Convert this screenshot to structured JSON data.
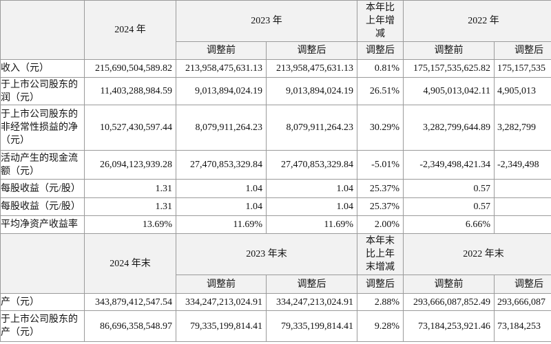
{
  "sections": [
    {
      "header": {
        "period_a": "2024 年",
        "period_b": "2023 年",
        "change": "本年比\n上年增\n减",
        "period_c": "2022 年",
        "sub": [
          "调整前",
          "调整后",
          "调整后",
          "调整前",
          "调整后"
        ]
      },
      "rows": [
        {
          "label": "收入（元）",
          "cells": [
            "215,690,504,589.82",
            "213,958,475,631.13",
            "213,958,475,631.13",
            "0.81%",
            "175,157,535,625.82",
            "175,157,535"
          ]
        },
        {
          "label": "于上市公司股东的\n润（元）",
          "cells": [
            "11,403,288,984.59",
            "9,013,894,024.19",
            "9,013,894,024.19",
            "26.51%",
            "4,905,013,042.11",
            "4,905,013"
          ]
        },
        {
          "label": "于上市公司股东的\n非经常性损益的净\n（元）",
          "cells": [
            "10,527,430,597.44",
            "8,079,911,264.23",
            "8,079,911,264.23",
            "30.29%",
            "3,282,799,644.89",
            "3,282,799"
          ]
        },
        {
          "label": "活动产生的现金流\n额（元）",
          "cells": [
            "26,094,123,939.28",
            "27,470,853,329.84",
            "27,470,853,329.84",
            "-5.01%",
            "-2,349,498,421.34",
            "-2,349,498"
          ]
        },
        {
          "label": "每股收益（元/股）",
          "cells": [
            "1.31",
            "1.04",
            "1.04",
            "25.37%",
            "0.57"
          ]
        },
        {
          "label": "每股收益（元/股）",
          "cells": [
            "1.31",
            "1.04",
            "1.04",
            "25.37%",
            "0.57"
          ]
        },
        {
          "label": "平均净资产收益率",
          "cells": [
            "13.69%",
            "11.69%",
            "11.69%",
            "2.00%",
            "6.66%"
          ]
        }
      ]
    },
    {
      "header": {
        "period_a": "2024 年末",
        "period_b": "2023 年末",
        "change": "本年末\n比上年\n末增减",
        "period_c": "2022 年末",
        "sub": [
          "调整前",
          "调整后",
          "调整后",
          "调整前",
          "调整后"
        ]
      },
      "rows": [
        {
          "label": "产（元）",
          "cells": [
            "343,879,412,547.54",
            "334,247,213,024.91",
            "334,247,213,024.91",
            "2.88%",
            "293,666,087,852.49",
            "293,666,087"
          ]
        },
        {
          "label": "于上市公司股东的\n产（元）",
          "cells": [
            "86,696,358,548.97",
            "79,335,199,814.41",
            "79,335,199,814.41",
            "9.28%",
            "73,184,253,921.46",
            "73,184,253"
          ]
        }
      ]
    }
  ]
}
